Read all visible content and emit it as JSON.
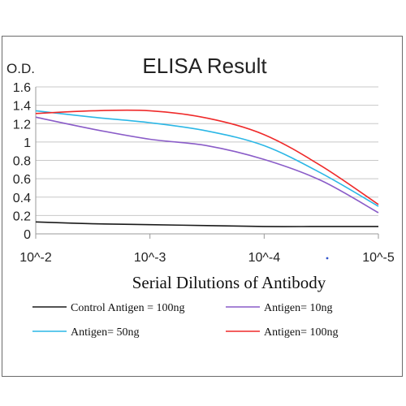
{
  "chart_data": {
    "type": "line",
    "title": "ELISA Result",
    "ylabel": "O.D.",
    "xlabel": "Serial Dilutions  of Antibody",
    "x_categories": [
      "10^-2",
      "10^-3",
      "10^-4",
      "10^-5"
    ],
    "ylim": [
      0,
      1.6
    ],
    "yticks": [
      0,
      0.2,
      0.4,
      0.6,
      0.8,
      1,
      1.2,
      1.4,
      1.6
    ],
    "ytick_labels": [
      "0",
      "0.2",
      "0.4",
      "0.6",
      "0.8",
      "1",
      "1.2",
      "1.4",
      "1.6"
    ],
    "grid": "horizontal",
    "legend_position": "bottom",
    "series": [
      {
        "name": "Control Antigen = 100ng",
        "color": "#1a1a1a",
        "points": [
          [
            0,
            0.13
          ],
          [
            0.5,
            0.11
          ],
          [
            1,
            0.1
          ],
          [
            1.5,
            0.09
          ],
          [
            2,
            0.08
          ],
          [
            2.5,
            0.08
          ],
          [
            3,
            0.08
          ]
        ]
      },
      {
        "name": "Antigen= 10ng",
        "color": "#8a5cc8",
        "points": [
          [
            0,
            1.27
          ],
          [
            0.5,
            1.14
          ],
          [
            1,
            1.03
          ],
          [
            1.5,
            0.96
          ],
          [
            2,
            0.81
          ],
          [
            2.5,
            0.58
          ],
          [
            3,
            0.23
          ]
        ]
      },
      {
        "name": "Antigen= 50ng",
        "color": "#2bb7e6",
        "points": [
          [
            0,
            1.34
          ],
          [
            0.5,
            1.27
          ],
          [
            1,
            1.21
          ],
          [
            1.5,
            1.12
          ],
          [
            2,
            0.96
          ],
          [
            2.5,
            0.66
          ],
          [
            3,
            0.3
          ]
        ]
      },
      {
        "name": "Antigen= 100ng",
        "color": "#ef2a2a",
        "points": [
          [
            0,
            1.31
          ],
          [
            0.5,
            1.34
          ],
          [
            1,
            1.34
          ],
          [
            1.5,
            1.26
          ],
          [
            2,
            1.08
          ],
          [
            2.5,
            0.74
          ],
          [
            3,
            0.32
          ]
        ]
      }
    ]
  }
}
